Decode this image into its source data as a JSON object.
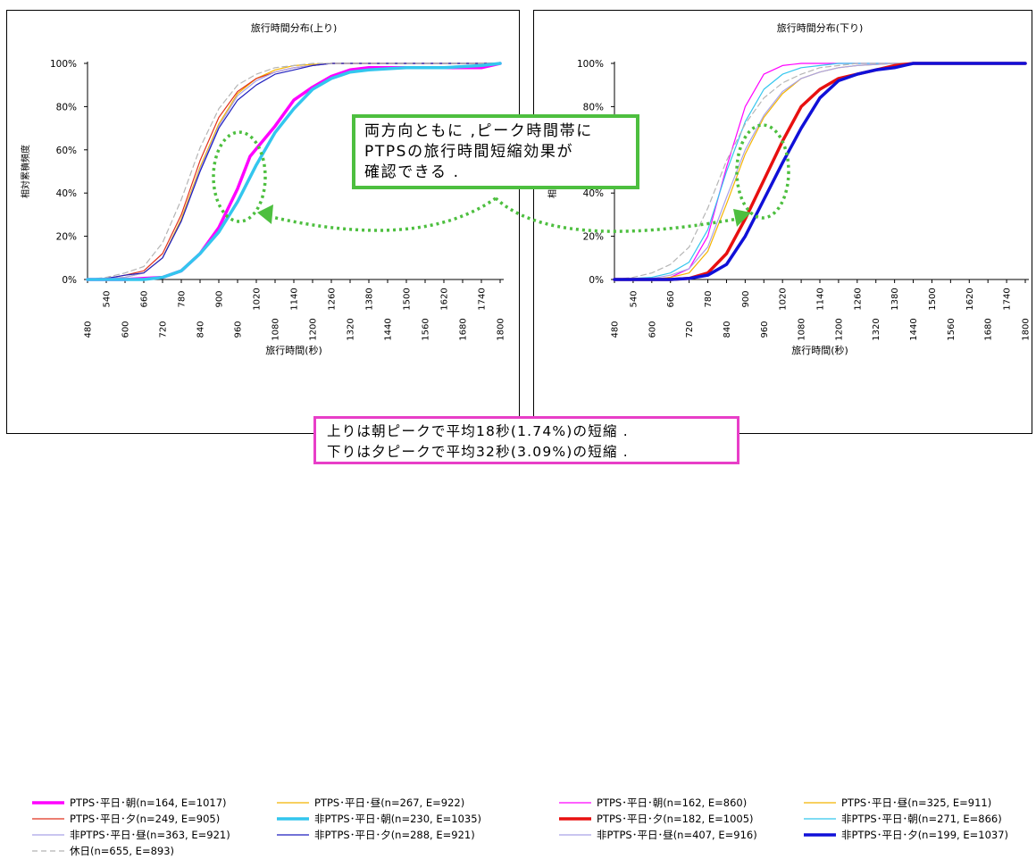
{
  "chart_data": [
    {
      "type": "line",
      "title": "旅行時間分布(上り)",
      "xlabel": "旅行時間(秒)",
      "ylabel": "相対累積頻度",
      "xlim": [
        480,
        1800
      ],
      "ylim": [
        0,
        100
      ],
      "x_ticks_upper": [
        "540",
        "660",
        "780",
        "900",
        "1020",
        "1140",
        "1260",
        "1380",
        "1500",
        "1620",
        "1740"
      ],
      "x_ticks_lower": [
        "480",
        "600",
        "720",
        "840",
        "960",
        "1080",
        "1200",
        "1320",
        "1440",
        "1560",
        "1680",
        "1800"
      ],
      "y_ticks": [
        "0%",
        "20%",
        "40%",
        "60%",
        "80%",
        "100%"
      ],
      "series": [
        {
          "name": "PTPS･平日･朝(n=164, E=1017)",
          "color": "#ff00ff",
          "width": 3.5,
          "dash": "",
          "points": [
            [
              480,
              0
            ],
            [
              600,
              0
            ],
            [
              660,
              0.5
            ],
            [
              720,
              1
            ],
            [
              780,
              4
            ],
            [
              840,
              12
            ],
            [
              900,
              24
            ],
            [
              960,
              42
            ],
            [
              1000,
              57
            ],
            [
              1040,
              64
            ],
            [
              1080,
              71
            ],
            [
              1140,
              83
            ],
            [
              1200,
              89
            ],
            [
              1260,
              94
            ],
            [
              1320,
              97
            ],
            [
              1380,
              98
            ],
            [
              1500,
              98
            ],
            [
              1620,
              98
            ],
            [
              1740,
              98
            ],
            [
              1800,
              100
            ]
          ]
        },
        {
          "name": "PTPS･平日･昼(n=267, E=922)",
          "color": "#f4b400",
          "width": 1.2,
          "dash": "",
          "points": [
            [
              480,
              0
            ],
            [
              540,
              0.5
            ],
            [
              600,
              1
            ],
            [
              660,
              3
            ],
            [
              720,
              10
            ],
            [
              780,
              28
            ],
            [
              840,
              52
            ],
            [
              900,
              72
            ],
            [
              960,
              86
            ],
            [
              1020,
              93
            ],
            [
              1080,
              97
            ],
            [
              1140,
              99
            ],
            [
              1260,
              100
            ],
            [
              1800,
              100
            ]
          ]
        },
        {
          "name": "PTPS･平日･夕(n=249, E=905)",
          "color": "#e0321e",
          "width": 1.2,
          "dash": "",
          "points": [
            [
              480,
              0
            ],
            [
              540,
              0.5
            ],
            [
              600,
              2
            ],
            [
              660,
              4
            ],
            [
              720,
              12
            ],
            [
              780,
              30
            ],
            [
              840,
              55
            ],
            [
              900,
              75
            ],
            [
              960,
              87
            ],
            [
              1020,
              93
            ],
            [
              1080,
              96
            ],
            [
              1140,
              98
            ],
            [
              1200,
              99
            ],
            [
              1260,
              100
            ],
            [
              1800,
              100
            ]
          ]
        },
        {
          "name": "非PTPS･平日･朝(n=230, E=1035)",
          "color": "#33c6ee",
          "width": 3.5,
          "dash": "",
          "points": [
            [
              480,
              0
            ],
            [
              600,
              0
            ],
            [
              660,
              0
            ],
            [
              720,
              1
            ],
            [
              780,
              4
            ],
            [
              840,
              12
            ],
            [
              900,
              22
            ],
            [
              960,
              36
            ],
            [
              1020,
              53
            ],
            [
              1080,
              68
            ],
            [
              1140,
              79
            ],
            [
              1200,
              88
            ],
            [
              1260,
              93
            ],
            [
              1320,
              96
            ],
            [
              1380,
              97
            ],
            [
              1500,
              98
            ],
            [
              1620,
              98
            ],
            [
              1740,
              99
            ],
            [
              1800,
              100
            ]
          ]
        },
        {
          "name": "非PTPS･平日･昼(n=363, E=921)",
          "color": "#a9a2e8",
          "width": 1.2,
          "dash": "",
          "points": [
            [
              480,
              0
            ],
            [
              540,
              0.5
            ],
            [
              600,
              1
            ],
            [
              660,
              3
            ],
            [
              720,
              10
            ],
            [
              780,
              27
            ],
            [
              840,
              51
            ],
            [
              900,
              71
            ],
            [
              960,
              85
            ],
            [
              1020,
              92
            ],
            [
              1080,
              96
            ],
            [
              1140,
              98
            ],
            [
              1200,
              99
            ],
            [
              1260,
              100
            ],
            [
              1800,
              100
            ]
          ]
        },
        {
          "name": "非PTPS･平日･夕(n=288, E=921)",
          "color": "#1f1fbe",
          "width": 1.2,
          "dash": "",
          "points": [
            [
              480,
              0
            ],
            [
              540,
              0.5
            ],
            [
              600,
              2
            ],
            [
              660,
              3
            ],
            [
              720,
              10
            ],
            [
              780,
              27
            ],
            [
              840,
              50
            ],
            [
              900,
              70
            ],
            [
              960,
              83
            ],
            [
              1020,
              90
            ],
            [
              1080,
              95
            ],
            [
              1140,
              97
            ],
            [
              1200,
              99
            ],
            [
              1260,
              100
            ],
            [
              1800,
              100
            ]
          ]
        },
        {
          "name": "休日(n=655, E=893)",
          "color": "#b5b5b5",
          "width": 1.2,
          "dash": "6 4",
          "points": [
            [
              480,
              0
            ],
            [
              540,
              1
            ],
            [
              600,
              3
            ],
            [
              660,
              6
            ],
            [
              720,
              17
            ],
            [
              780,
              37
            ],
            [
              840,
              61
            ],
            [
              900,
              79
            ],
            [
              960,
              90
            ],
            [
              1020,
              95
            ],
            [
              1080,
              98
            ],
            [
              1140,
              99
            ],
            [
              1200,
              100
            ],
            [
              1800,
              100
            ]
          ]
        }
      ]
    },
    {
      "type": "line",
      "title": "旅行時間分布(下り)",
      "xlabel": "旅行時間(秒)",
      "ylabel": "相対累積頻度",
      "xlim": [
        480,
        1800
      ],
      "ylim": [
        0,
        100
      ],
      "x_ticks_upper": [
        "540",
        "660",
        "780",
        "900",
        "1020",
        "1140",
        "1260",
        "1380",
        "1500",
        "1620",
        "1740"
      ],
      "x_ticks_lower": [
        "480",
        "600",
        "720",
        "840",
        "960",
        "1080",
        "1200",
        "1320",
        "1440",
        "1560",
        "1680",
        "1800"
      ],
      "y_ticks": [
        "0%",
        "20%",
        "40%",
        "60%",
        "80%",
        "100%"
      ],
      "series": [
        {
          "name": "PTPS･平日･朝(n=162, E=860)",
          "color": "#ff00ff",
          "width": 1.2,
          "dash": "",
          "points": [
            [
              480,
              0
            ],
            [
              600,
              0
            ],
            [
              660,
              1
            ],
            [
              720,
              5
            ],
            [
              780,
              20
            ],
            [
              840,
              52
            ],
            [
              900,
              80
            ],
            [
              960,
              95
            ],
            [
              1020,
              99
            ],
            [
              1080,
              100
            ],
            [
              1800,
              100
            ]
          ]
        },
        {
          "name": "PTPS･平日･昼(n=325, E=911)",
          "color": "#f4b400",
          "width": 1.2,
          "dash": "",
          "points": [
            [
              480,
              0
            ],
            [
              600,
              0
            ],
            [
              660,
              1
            ],
            [
              720,
              3
            ],
            [
              780,
              13
            ],
            [
              840,
              35
            ],
            [
              900,
              58
            ],
            [
              960,
              75
            ],
            [
              1020,
              86
            ],
            [
              1080,
              93
            ],
            [
              1140,
              96
            ],
            [
              1200,
              98
            ],
            [
              1260,
              99
            ],
            [
              1380,
              100
            ],
            [
              1800,
              100
            ]
          ]
        },
        {
          "name": "PTPS･平日･夕(n=182, E=1005)",
          "color": "#e81010",
          "width": 3.5,
          "dash": "",
          "points": [
            [
              480,
              0
            ],
            [
              660,
              0
            ],
            [
              720,
              0.5
            ],
            [
              780,
              3
            ],
            [
              840,
              12
            ],
            [
              900,
              28
            ],
            [
              960,
              46
            ],
            [
              1020,
              64
            ],
            [
              1080,
              80
            ],
            [
              1140,
              88
            ],
            [
              1200,
              93
            ],
            [
              1260,
              95
            ],
            [
              1320,
              97
            ],
            [
              1380,
              99
            ],
            [
              1440,
              100
            ],
            [
              1800,
              100
            ]
          ]
        },
        {
          "name": "非PTPS･平日･朝(n=271, E=866)",
          "color": "#33c6ee",
          "width": 1.2,
          "dash": "",
          "points": [
            [
              480,
              0
            ],
            [
              600,
              1
            ],
            [
              660,
              3
            ],
            [
              720,
              8
            ],
            [
              780,
              23
            ],
            [
              840,
              50
            ],
            [
              900,
              73
            ],
            [
              960,
              88
            ],
            [
              1020,
              95
            ],
            [
              1080,
              98
            ],
            [
              1140,
              99
            ],
            [
              1200,
              100
            ],
            [
              1800,
              100
            ]
          ]
        },
        {
          "name": "非PTPS･平日･昼(n=407, E=916)",
          "color": "#a9a2e8",
          "width": 1.2,
          "dash": "",
          "points": [
            [
              480,
              0
            ],
            [
              600,
              0.5
            ],
            [
              660,
              2
            ],
            [
              720,
              5
            ],
            [
              780,
              15
            ],
            [
              840,
              38
            ],
            [
              900,
              60
            ],
            [
              960,
              76
            ],
            [
              1020,
              87
            ],
            [
              1080,
              93
            ],
            [
              1140,
              96
            ],
            [
              1200,
              98
            ],
            [
              1260,
              99
            ],
            [
              1380,
              100
            ],
            [
              1800,
              100
            ]
          ]
        },
        {
          "name": "非PTPS･平日･夕(n=199, E=1037)",
          "color": "#1010d8",
          "width": 3.5,
          "dash": "",
          "points": [
            [
              480,
              0
            ],
            [
              660,
              0
            ],
            [
              720,
              0.5
            ],
            [
              780,
              2
            ],
            [
              840,
              7
            ],
            [
              900,
              20
            ],
            [
              960,
              37
            ],
            [
              1020,
              54
            ],
            [
              1080,
              70
            ],
            [
              1140,
              84
            ],
            [
              1200,
              92
            ],
            [
              1260,
              95
            ],
            [
              1320,
              97
            ],
            [
              1380,
              98
            ],
            [
              1440,
              100
            ],
            [
              1800,
              100
            ]
          ]
        },
        {
          "name": "休日",
          "color": "#b5b5b5",
          "width": 1.2,
          "dash": "6 4",
          "points": [
            [
              480,
              0
            ],
            [
              540,
              1
            ],
            [
              600,
              3
            ],
            [
              660,
              7
            ],
            [
              720,
              15
            ],
            [
              780,
              33
            ],
            [
              840,
              55
            ],
            [
              900,
              72
            ],
            [
              960,
              84
            ],
            [
              1020,
              91
            ],
            [
              1080,
              95
            ],
            [
              1140,
              98
            ],
            [
              1200,
              99
            ],
            [
              1260,
              100
            ],
            [
              1800,
              100
            ]
          ]
        }
      ]
    }
  ],
  "legend_left": [
    "PTPS･平日･朝(n=164, E=1017)",
    "PTPS･平日･昼(n=267, E=922)",
    "PTPS･平日･夕(n=249, E=905)",
    "非PTPS･平日･朝(n=230, E=1035)",
    "非PTPS･平日･昼(n=363, E=921)",
    "非PTPS･平日･夕(n=288, E=921)",
    "休日(n=655, E=893)"
  ],
  "legend_right": [
    "PTPS･平日･朝(n=162, E=860)",
    "PTPS･平日･昼(n=325, E=911)",
    "PTPS･平日･夕(n=182, E=1005)",
    "非PTPS･平日･朝(n=271, E=866)",
    "非PTPS･平日･昼(n=407, E=916)",
    "非PTPS･平日･夕(n=199, E=1037)"
  ],
  "callout_green": [
    "両方向ともに ,ピーク時間帯に",
    "PTPSの旅行時間短縮効果が",
    "確認できる ."
  ],
  "callout_pink": [
    "上りは朝ピークで平均18秒(1.74%)の短縮 .",
    "下りは夕ピークで平均32秒(3.09%)の短縮 ."
  ],
  "colors": {
    "callout_green": "#4dbf3f",
    "callout_pink": "#e83ec8",
    "arrow": "#4dbf3f"
  }
}
